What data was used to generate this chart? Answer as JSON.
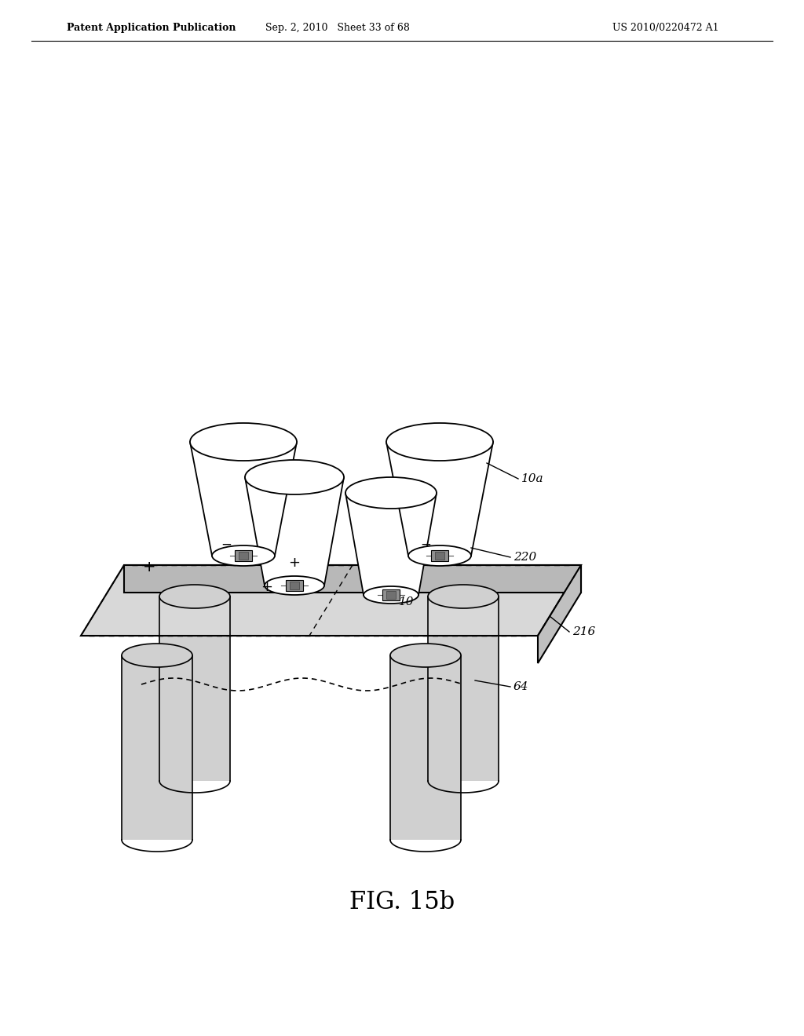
{
  "header_left": "Patent Application Publication",
  "header_mid": "Sep. 2, 2010   Sheet 33 of 68",
  "header_right": "US 2010/0220472 A1",
  "caption": "FIG. 15b",
  "label_10a": "10a",
  "label_220": "220",
  "label_10": "10",
  "label_216": "216",
  "label_64": "64",
  "bg_color": "#ffffff",
  "line_color": "#000000",
  "light_gray": "#cccccc",
  "mid_gray": "#999999",
  "platform_top_color": "#d8d8d8",
  "platform_front_color": "#b8b8b8",
  "platform_right_color": "#c0c0c0",
  "pillar_color": "#d0d0d0",
  "cup_color": "#f0f0f0"
}
